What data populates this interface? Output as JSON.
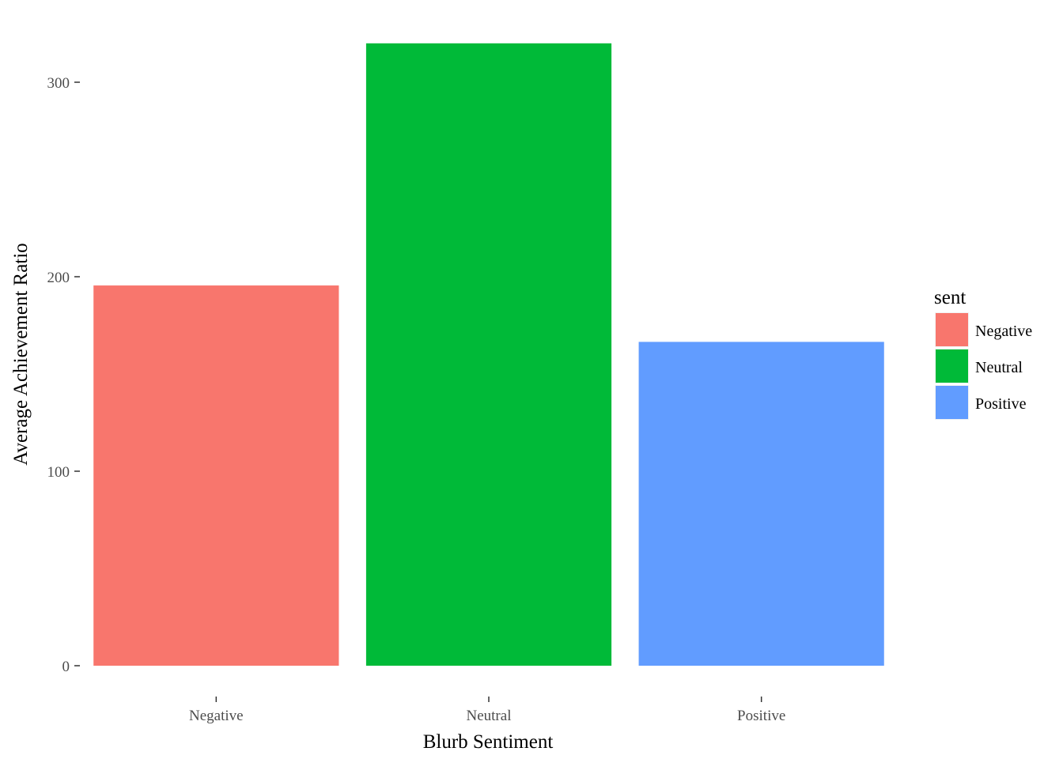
{
  "chart_data": {
    "type": "bar",
    "categories": [
      "Negative",
      "Neutral",
      "Positive"
    ],
    "values": [
      195.5,
      320,
      166.5
    ],
    "colors": [
      "#F8766D",
      "#00BA38",
      "#619CFF"
    ],
    "xlabel": "Blurb Sentiment",
    "ylabel": "Average Achievement Ratio",
    "ylim": [
      0,
      320
    ],
    "yticks": [
      0,
      100,
      200,
      300
    ],
    "grid": false,
    "legend": {
      "title": "sent",
      "placement": "right",
      "items": [
        "Negative",
        "Neutral",
        "Positive"
      ]
    }
  }
}
